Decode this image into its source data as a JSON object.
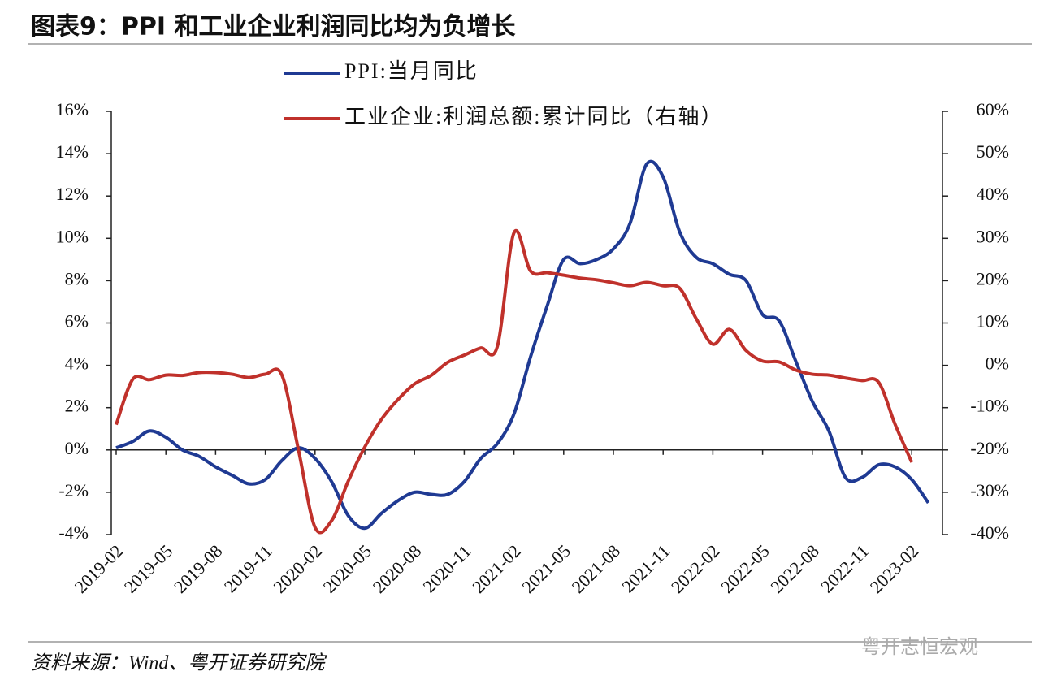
{
  "chart_data": {
    "type": "line",
    "title": "图表9：PPI 和工业企业利润同比均为负增长",
    "source": "资料来源：Wind、粤开证券研究院",
    "watermark": "粤开志恒宏观",
    "categories": [
      "2019-02",
      null,
      null,
      "2019-05",
      null,
      null,
      "2019-08",
      null,
      null,
      "2019-11",
      null,
      null,
      "2020-02",
      null,
      null,
      "2020-05",
      null,
      null,
      "2020-08",
      null,
      null,
      "2020-11",
      null,
      null,
      "2021-02",
      null,
      null,
      "2021-05",
      null,
      null,
      "2021-08",
      null,
      null,
      "2021-11",
      null,
      null,
      "2022-02",
      null,
      null,
      "2022-05",
      null,
      null,
      "2022-08",
      null,
      null,
      "2022-11",
      null,
      null,
      "2023-02",
      null
    ],
    "series": [
      {
        "name": "PPI:当月同比",
        "color": "#1f3a93",
        "axis": "y",
        "values": [
          0.1,
          0.4,
          0.9,
          0.6,
          0.0,
          -0.3,
          -0.8,
          -1.2,
          -1.6,
          -1.4,
          -0.5,
          0.1,
          -0.4,
          -1.5,
          -3.1,
          -3.7,
          -3.0,
          -2.4,
          -2.0,
          -2.1,
          -2.1,
          -1.5,
          -0.4,
          0.3,
          1.7,
          4.4,
          6.8,
          9.0,
          8.8,
          9.0,
          9.5,
          10.7,
          13.5,
          12.9,
          10.3,
          9.1,
          8.8,
          8.3,
          8.0,
          6.4,
          6.1,
          4.2,
          2.3,
          0.9,
          -1.3,
          -1.3,
          -0.7,
          -0.8,
          -1.4,
          -2.5
        ]
      },
      {
        "name": "工业企业:利润总额:累计同比（右轴）",
        "color": "#c0312b",
        "axis": "y2",
        "values": [
          -14.0,
          -3.3,
          -3.4,
          -2.3,
          -2.4,
          -1.7,
          -1.7,
          -2.1,
          -2.9,
          -2.1,
          -2.3,
          -20.0,
          -38.3,
          -36.7,
          -27.4,
          -19.3,
          -12.8,
          -8.1,
          -4.4,
          -2.4,
          0.7,
          2.4,
          4.1,
          4.5,
          31.3,
          22.3,
          21.9,
          21.3,
          20.6,
          20.2,
          19.5,
          18.8,
          19.6,
          18.8,
          18.2,
          11.0,
          5.0,
          8.5,
          3.5,
          1.0,
          0.8,
          -1.1,
          -2.1,
          -2.3,
          -3.0,
          -3.6,
          -4.0,
          -14.0,
          -22.9,
          null
        ]
      }
    ],
    "ylim": [
      -4,
      16
    ],
    "yticks": [
      {
        "value": -4,
        "label": "-4%"
      },
      {
        "value": -2,
        "label": "-2%"
      },
      {
        "value": 0,
        "label": "0%"
      },
      {
        "value": 2,
        "label": "2%"
      },
      {
        "value": 4,
        "label": "4%"
      },
      {
        "value": 6,
        "label": "6%"
      },
      {
        "value": 8,
        "label": "8%"
      },
      {
        "value": 10,
        "label": "10%"
      },
      {
        "value": 12,
        "label": "12%"
      },
      {
        "value": 14,
        "label": "14%"
      },
      {
        "value": 16,
        "label": "16%"
      }
    ],
    "y2lim": [
      -40,
      60
    ],
    "y2ticks": [
      {
        "value": -40,
        "label": "-40%"
      },
      {
        "value": -30,
        "label": "-30%"
      },
      {
        "value": -20,
        "label": "-20%"
      },
      {
        "value": -10,
        "label": "-10%"
      },
      {
        "value": 0,
        "label": "0%"
      },
      {
        "value": 10,
        "label": "10%"
      },
      {
        "value": 20,
        "label": "20%"
      },
      {
        "value": 30,
        "label": "30%"
      },
      {
        "value": 40,
        "label": "40%"
      },
      {
        "value": 50,
        "label": "50%"
      },
      {
        "value": 60,
        "label": "60%"
      }
    ]
  }
}
